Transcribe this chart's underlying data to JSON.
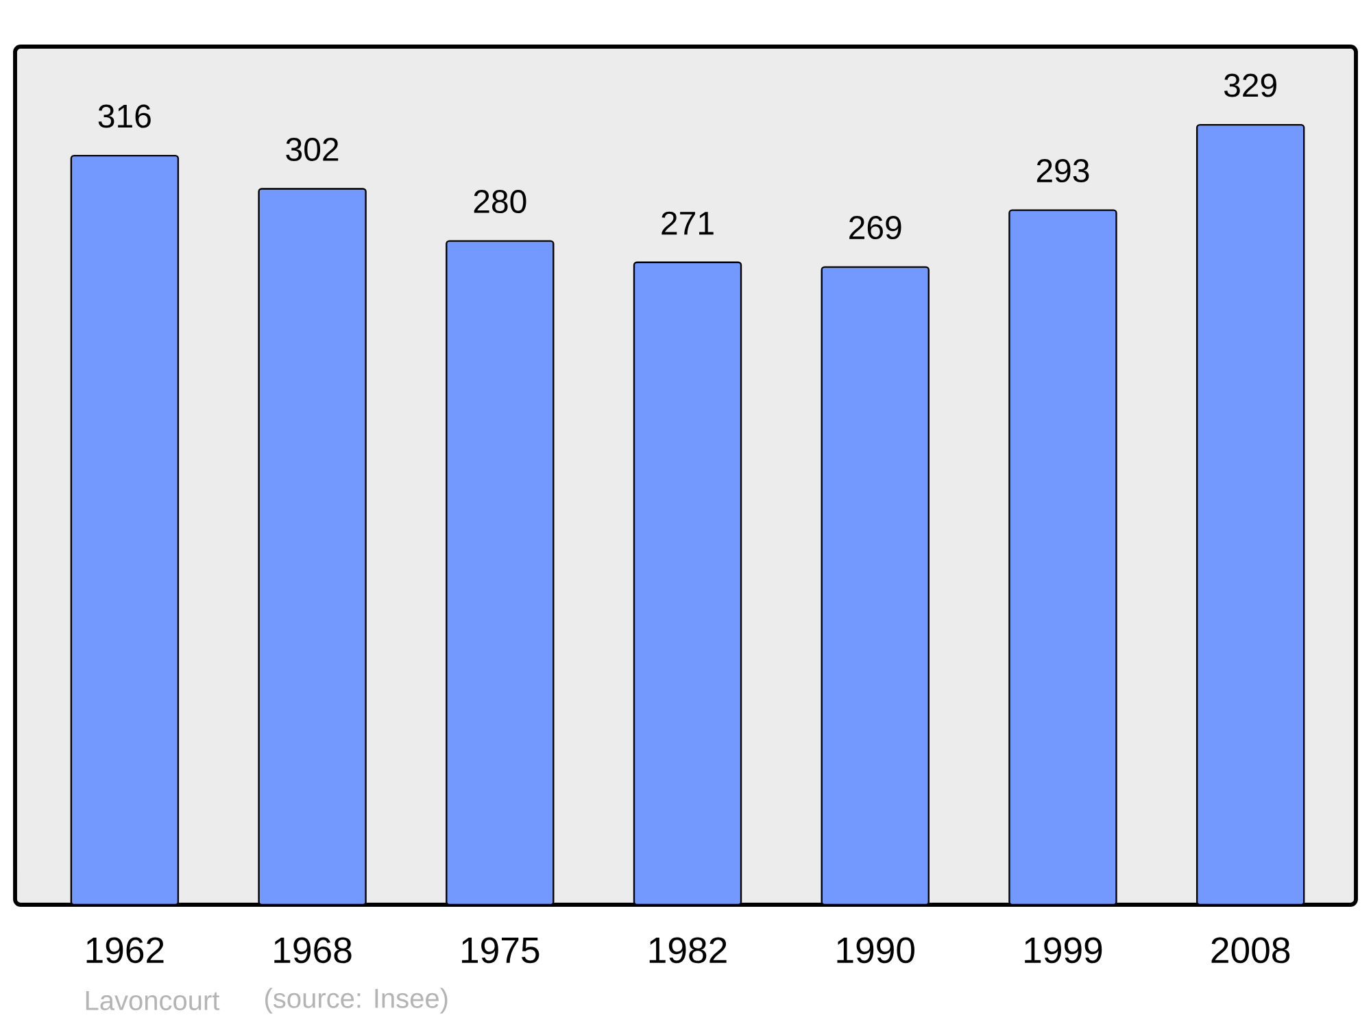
{
  "chart_data": {
    "type": "bar",
    "categories": [
      "1962",
      "1968",
      "1975",
      "1982",
      "1990",
      "1999",
      "2008"
    ],
    "values": [
      316,
      302,
      280,
      271,
      269,
      293,
      329
    ],
    "color": "#7399ff",
    "ylim": [
      0,
      362
    ],
    "data_labels": true,
    "annotations": [
      "Lavoncourt",
      "(source: Insee)"
    ]
  }
}
